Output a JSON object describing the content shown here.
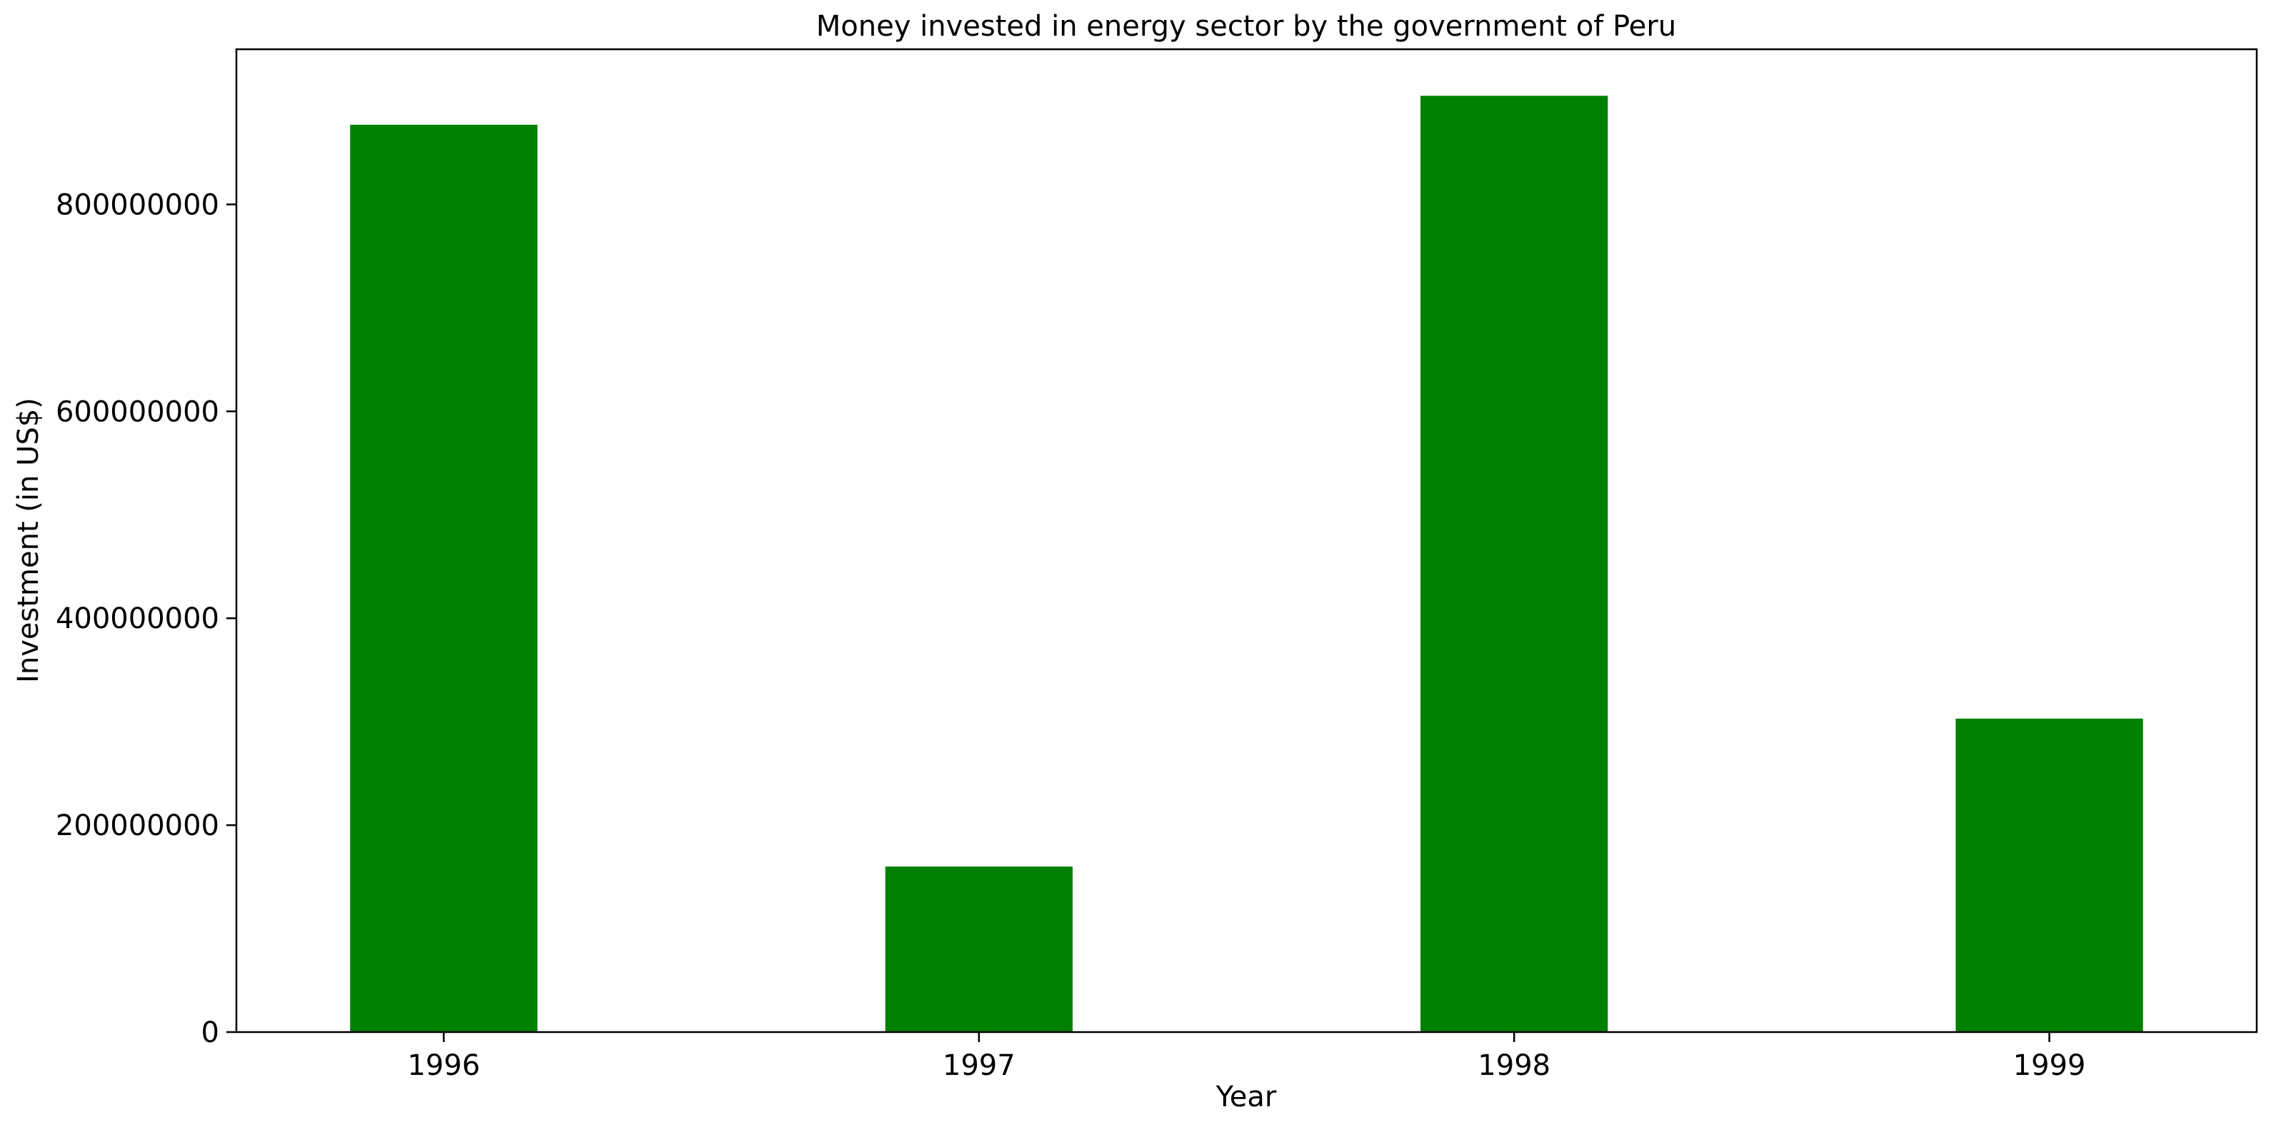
{
  "chart_data": {
    "type": "bar",
    "title": "Money invested in energy sector by the government of Peru",
    "xlabel": "Year",
    "ylabel": "Investment (in US$)",
    "categories": [
      "1996",
      "1997",
      "1998",
      "1999"
    ],
    "values": [
      877000000,
      160000000,
      905000000,
      303000000
    ],
    "ylim": [
      0,
      950000000
    ],
    "yticks": [
      0,
      200000000,
      400000000,
      600000000,
      800000000
    ],
    "ytick_labels": [
      "0",
      "200000000",
      "400000000",
      "600000000",
      "800000000"
    ],
    "bar_color": "#008000",
    "grid": false
  }
}
